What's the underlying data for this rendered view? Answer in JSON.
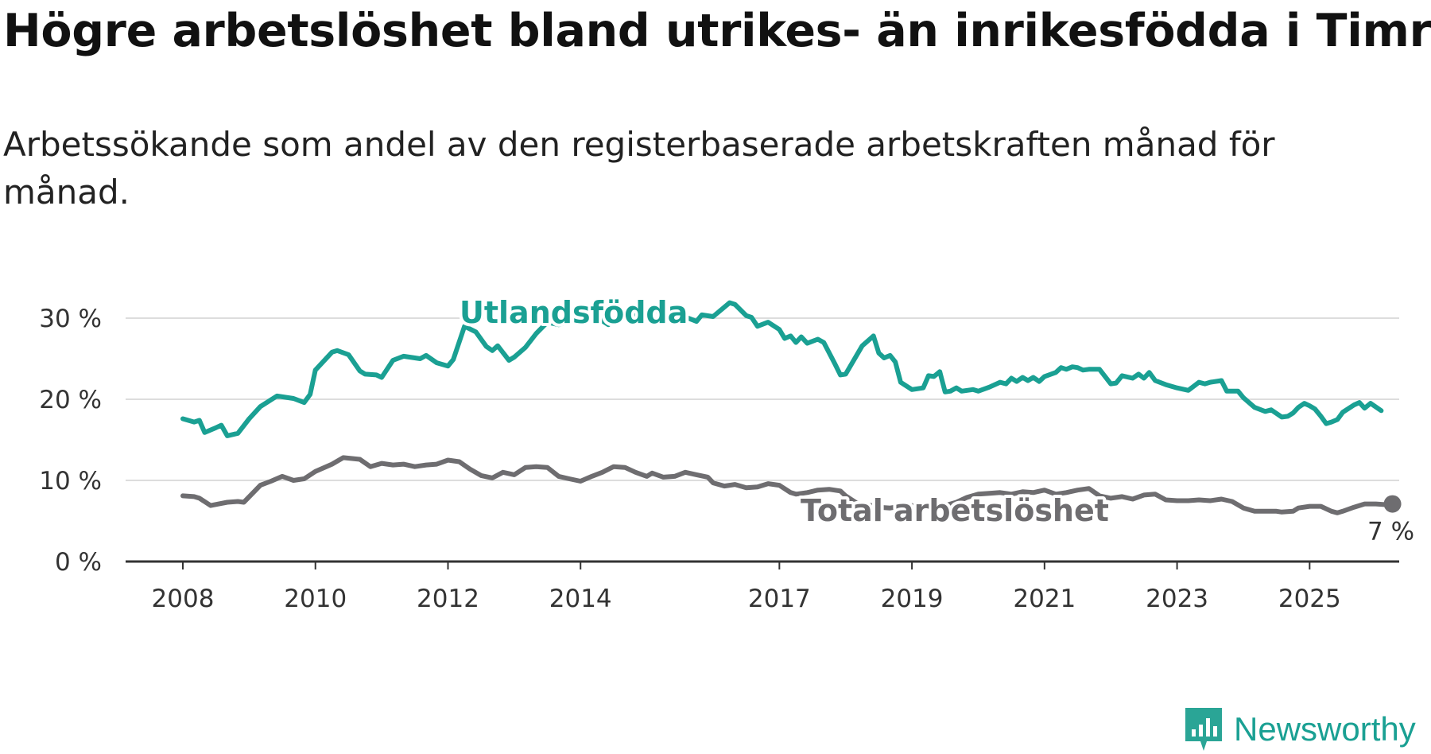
{
  "title": "Högre arbetslöshet bland utrikes- än inrikesfödda i Timrå",
  "subtitle": "Arbetssökande som andel av den registerbaserade arbetskraften månad för månad.",
  "brand": {
    "name": "Newsworthy",
    "icon": "newsworthy-logo-icon",
    "color": "#2aa596"
  },
  "chart_data": {
    "type": "line",
    "ylim": [
      0,
      30
    ],
    "xlim": [
      2008.0,
      2025.2
    ],
    "grid": true,
    "y_ticks": [
      {
        "value": 0,
        "label": "0 %"
      },
      {
        "value": 10,
        "label": "10 %"
      },
      {
        "value": 20,
        "label": "20 %"
      },
      {
        "value": 30,
        "label": "30 %"
      }
    ],
    "x_ticks": [
      {
        "value": 2008,
        "label": "2008"
      },
      {
        "value": 2010,
        "label": "2010"
      },
      {
        "value": 2012,
        "label": "2012"
      },
      {
        "value": 2014,
        "label": "2014"
      },
      {
        "value": 2017,
        "label": "2017"
      },
      {
        "value": 2019,
        "label": "2019"
      },
      {
        "value": 2021,
        "label": "2021"
      },
      {
        "value": 2023,
        "label": "2023"
      },
      {
        "value": 2025,
        "label": "2025"
      }
    ],
    "series": [
      {
        "name": "Utlandsfödda",
        "color": "#1aa093",
        "points": [
          [
            2008.0,
            17.6
          ],
          [
            2008.17,
            17.2
          ],
          [
            2008.25,
            17.4
          ],
          [
            2008.33,
            15.9
          ],
          [
            2008.5,
            16.5
          ],
          [
            2008.58,
            16.8
          ],
          [
            2008.67,
            15.5
          ],
          [
            2008.83,
            15.8
          ],
          [
            2009.0,
            17.6
          ],
          [
            2009.17,
            19.1
          ],
          [
            2009.42,
            20.4
          ],
          [
            2009.67,
            20.1
          ],
          [
            2009.83,
            19.6
          ],
          [
            2009.92,
            20.6
          ],
          [
            2010.0,
            23.6
          ],
          [
            2010.25,
            25.8
          ],
          [
            2010.33,
            26.0
          ],
          [
            2010.5,
            25.5
          ],
          [
            2010.67,
            23.5
          ],
          [
            2010.75,
            23.1
          ],
          [
            2010.92,
            23.0
          ],
          [
            2011.0,
            22.7
          ],
          [
            2011.17,
            24.8
          ],
          [
            2011.33,
            25.3
          ],
          [
            2011.58,
            25.0
          ],
          [
            2011.67,
            25.4
          ],
          [
            2011.83,
            24.5
          ],
          [
            2012.0,
            24.1
          ],
          [
            2012.08,
            24.9
          ],
          [
            2012.25,
            29.0
          ],
          [
            2012.42,
            28.3
          ],
          [
            2012.58,
            26.5
          ],
          [
            2012.67,
            26.0
          ],
          [
            2012.75,
            26.6
          ],
          [
            2012.92,
            24.8
          ],
          [
            2013.0,
            25.2
          ],
          [
            2013.17,
            26.4
          ],
          [
            2013.33,
            28.1
          ],
          [
            2013.5,
            29.5
          ],
          [
            2013.67,
            29.2
          ],
          [
            2013.92,
            29.8
          ],
          [
            2014.17,
            30.5
          ],
          [
            2014.42,
            29.2
          ],
          [
            2014.5,
            29.9
          ],
          [
            2014.67,
            30.6
          ],
          [
            2014.92,
            30.2
          ],
          [
            2015.17,
            31.0
          ],
          [
            2015.5,
            30.4
          ],
          [
            2015.75,
            29.6
          ],
          [
            2015.83,
            30.4
          ],
          [
            2016.0,
            30.2
          ],
          [
            2016.25,
            31.9
          ],
          [
            2016.33,
            31.7
          ],
          [
            2016.5,
            30.3
          ],
          [
            2016.58,
            30.1
          ],
          [
            2016.67,
            29.0
          ],
          [
            2016.83,
            29.5
          ],
          [
            2017.0,
            28.6
          ],
          [
            2017.08,
            27.5
          ],
          [
            2017.17,
            27.8
          ],
          [
            2017.25,
            27.0
          ],
          [
            2017.33,
            27.7
          ],
          [
            2017.42,
            26.9
          ],
          [
            2017.58,
            27.4
          ],
          [
            2017.67,
            27.0
          ],
          [
            2017.83,
            24.5
          ],
          [
            2017.92,
            23.0
          ],
          [
            2018.0,
            23.1
          ],
          [
            2018.25,
            26.6
          ],
          [
            2018.42,
            27.8
          ],
          [
            2018.5,
            25.7
          ],
          [
            2018.58,
            25.1
          ],
          [
            2018.67,
            25.4
          ],
          [
            2018.75,
            24.6
          ],
          [
            2018.83,
            22.1
          ],
          [
            2019.0,
            21.2
          ],
          [
            2019.17,
            21.4
          ],
          [
            2019.25,
            22.9
          ],
          [
            2019.33,
            22.8
          ],
          [
            2019.42,
            23.4
          ],
          [
            2019.5,
            20.9
          ],
          [
            2019.58,
            21.0
          ],
          [
            2019.67,
            21.4
          ],
          [
            2019.75,
            21.0
          ],
          [
            2019.92,
            21.2
          ],
          [
            2020.0,
            21.0
          ],
          [
            2020.17,
            21.5
          ],
          [
            2020.33,
            22.1
          ],
          [
            2020.42,
            21.9
          ],
          [
            2020.5,
            22.6
          ],
          [
            2020.58,
            22.2
          ],
          [
            2020.67,
            22.7
          ],
          [
            2020.75,
            22.3
          ],
          [
            2020.83,
            22.7
          ],
          [
            2020.92,
            22.2
          ],
          [
            2021.0,
            22.8
          ],
          [
            2021.17,
            23.3
          ],
          [
            2021.25,
            23.9
          ],
          [
            2021.33,
            23.7
          ],
          [
            2021.42,
            24.0
          ],
          [
            2021.5,
            23.9
          ],
          [
            2021.58,
            23.6
          ],
          [
            2021.67,
            23.7
          ],
          [
            2021.83,
            23.7
          ],
          [
            2022.0,
            21.9
          ],
          [
            2022.08,
            22.0
          ],
          [
            2022.17,
            22.9
          ],
          [
            2022.33,
            22.6
          ],
          [
            2022.42,
            23.1
          ],
          [
            2022.5,
            22.6
          ],
          [
            2022.58,
            23.3
          ],
          [
            2022.67,
            22.3
          ],
          [
            2022.83,
            21.8
          ],
          [
            2023.0,
            21.4
          ],
          [
            2023.17,
            21.1
          ],
          [
            2023.33,
            22.1
          ],
          [
            2023.42,
            21.9
          ],
          [
            2023.5,
            22.1
          ],
          [
            2023.67,
            22.3
          ],
          [
            2023.75,
            21.0
          ],
          [
            2023.92,
            21.0
          ],
          [
            2024.0,
            20.2
          ],
          [
            2024.17,
            19.0
          ],
          [
            2024.33,
            18.5
          ],
          [
            2024.42,
            18.7
          ],
          [
            2024.58,
            17.8
          ],
          [
            2024.67,
            17.9
          ],
          [
            2024.75,
            18.3
          ],
          [
            2024.83,
            19.0
          ],
          [
            2024.92,
            19.5
          ],
          [
            2025.0,
            19.2
          ],
          [
            2025.08,
            18.8
          ],
          [
            2025.17,
            17.9
          ],
          [
            2025.25,
            17.0
          ],
          [
            2025.33,
            17.2
          ],
          [
            2025.42,
            17.5
          ],
          [
            2025.5,
            18.4
          ],
          [
            2025.67,
            19.3
          ],
          [
            2025.75,
            19.6
          ],
          [
            2025.83,
            18.9
          ],
          [
            2025.92,
            19.5
          ],
          [
            2026.08,
            18.6
          ]
        ]
      },
      {
        "name": "Total arbetslöshet",
        "color": "#6e6d70",
        "points": [
          [
            2008.0,
            8.1
          ],
          [
            2008.17,
            8.0
          ],
          [
            2008.25,
            7.8
          ],
          [
            2008.42,
            6.9
          ],
          [
            2008.67,
            7.3
          ],
          [
            2008.83,
            7.4
          ],
          [
            2008.92,
            7.3
          ],
          [
            2009.17,
            9.4
          ],
          [
            2009.33,
            9.9
          ],
          [
            2009.5,
            10.5
          ],
          [
            2009.67,
            10.0
          ],
          [
            2009.83,
            10.2
          ],
          [
            2010.0,
            11.1
          ],
          [
            2010.25,
            12.0
          ],
          [
            2010.42,
            12.8
          ],
          [
            2010.67,
            12.6
          ],
          [
            2010.83,
            11.7
          ],
          [
            2011.0,
            12.1
          ],
          [
            2011.17,
            11.9
          ],
          [
            2011.33,
            12.0
          ],
          [
            2011.5,
            11.7
          ],
          [
            2011.67,
            11.9
          ],
          [
            2011.83,
            12.0
          ],
          [
            2012.0,
            12.5
          ],
          [
            2012.17,
            12.3
          ],
          [
            2012.33,
            11.4
          ],
          [
            2012.5,
            10.6
          ],
          [
            2012.67,
            10.3
          ],
          [
            2012.83,
            11.0
          ],
          [
            2013.0,
            10.7
          ],
          [
            2013.17,
            11.6
          ],
          [
            2013.33,
            11.7
          ],
          [
            2013.5,
            11.6
          ],
          [
            2013.67,
            10.5
          ],
          [
            2013.83,
            10.2
          ],
          [
            2014.0,
            9.9
          ],
          [
            2014.17,
            10.5
          ],
          [
            2014.33,
            11.0
          ],
          [
            2014.5,
            11.7
          ],
          [
            2014.67,
            11.6
          ],
          [
            2014.83,
            11.0
          ],
          [
            2015.0,
            10.5
          ],
          [
            2015.08,
            10.9
          ],
          [
            2015.25,
            10.4
          ],
          [
            2015.42,
            10.5
          ],
          [
            2015.58,
            11.0
          ],
          [
            2015.75,
            10.7
          ],
          [
            2015.92,
            10.4
          ],
          [
            2016.0,
            9.7
          ],
          [
            2016.17,
            9.3
          ],
          [
            2016.33,
            9.5
          ],
          [
            2016.5,
            9.1
          ],
          [
            2016.67,
            9.2
          ],
          [
            2016.83,
            9.6
          ],
          [
            2017.0,
            9.4
          ],
          [
            2017.17,
            8.5
          ],
          [
            2017.25,
            8.3
          ],
          [
            2017.42,
            8.5
          ],
          [
            2017.58,
            8.8
          ],
          [
            2017.75,
            8.9
          ],
          [
            2017.92,
            8.7
          ],
          [
            2018.0,
            8.1
          ],
          [
            2018.17,
            7.2
          ],
          [
            2018.33,
            7.0
          ],
          [
            2018.5,
            6.7
          ],
          [
            2018.67,
            6.6
          ],
          [
            2018.83,
            6.8
          ],
          [
            2019.0,
            6.9
          ],
          [
            2019.17,
            6.5
          ],
          [
            2019.33,
            6.9
          ],
          [
            2019.5,
            6.9
          ],
          [
            2019.67,
            7.3
          ],
          [
            2019.83,
            7.9
          ],
          [
            2020.0,
            8.3
          ],
          [
            2020.17,
            8.4
          ],
          [
            2020.33,
            8.5
          ],
          [
            2020.5,
            8.3
          ],
          [
            2020.67,
            8.6
          ],
          [
            2020.83,
            8.5
          ],
          [
            2021.0,
            8.8
          ],
          [
            2021.17,
            8.3
          ],
          [
            2021.33,
            8.5
          ],
          [
            2021.5,
            8.8
          ],
          [
            2021.67,
            9.0
          ],
          [
            2021.83,
            8.1
          ],
          [
            2022.0,
            7.8
          ],
          [
            2022.17,
            8.0
          ],
          [
            2022.33,
            7.7
          ],
          [
            2022.5,
            8.2
          ],
          [
            2022.67,
            8.3
          ],
          [
            2022.83,
            7.6
          ],
          [
            2023.0,
            7.5
          ],
          [
            2023.17,
            7.5
          ],
          [
            2023.33,
            7.6
          ],
          [
            2023.5,
            7.5
          ],
          [
            2023.67,
            7.7
          ],
          [
            2023.83,
            7.4
          ],
          [
            2024.0,
            6.6
          ],
          [
            2024.17,
            6.2
          ],
          [
            2024.33,
            6.2
          ],
          [
            2024.5,
            6.2
          ],
          [
            2024.58,
            6.1
          ],
          [
            2024.75,
            6.2
          ],
          [
            2024.83,
            6.6
          ],
          [
            2025.0,
            6.8
          ],
          [
            2025.17,
            6.8
          ],
          [
            2025.33,
            6.2
          ],
          [
            2025.42,
            6.0
          ],
          [
            2025.5,
            6.2
          ],
          [
            2025.67,
            6.7
          ],
          [
            2025.83,
            7.1
          ],
          [
            2026.0,
            7.1
          ],
          [
            2026.17,
            7.0
          ],
          [
            2026.25,
            7.1
          ]
        ]
      }
    ],
    "end_annotation": {
      "series": "Total arbetslöshet",
      "value": 7,
      "label": "7 %"
    }
  }
}
